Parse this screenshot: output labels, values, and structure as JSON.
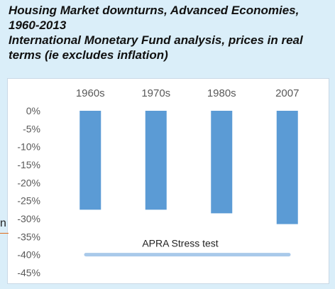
{
  "title_lines": [
    "Housing Market downturns, Advanced Economies,",
    "1960-2013",
    "International Monetary Fund analysis, prices in real",
    "terms (ie excludes inflation)"
  ],
  "edge_fragment": "n",
  "colors": {
    "bar": "#5b9bd5",
    "band": "#a9c9ea",
    "page_bg": "#daeef9",
    "axis_text": "#595959"
  },
  "chart_data": {
    "type": "bar",
    "title": "Housing Market downturns, Advanced Economies, 1960-2013",
    "categories": [
      "1960s",
      "1970s",
      "1980s",
      "2007"
    ],
    "values": [
      -27.5,
      -27.5,
      -28.5,
      -31.5
    ],
    "ylim": [
      -45,
      0
    ],
    "yticks": [
      0,
      -5,
      -10,
      -15,
      -20,
      -25,
      -30,
      -35,
      -40,
      -45
    ],
    "ytick_labels": [
      "0%",
      "-5%",
      "-10%",
      "-15%",
      "-20%",
      "-25%",
      "-30%",
      "-35%",
      "-40%",
      "-45%"
    ],
    "x_axis_position": "top",
    "grid": false,
    "annotations": [
      {
        "text": "APRA Stress test",
        "value": -40
      }
    ]
  }
}
